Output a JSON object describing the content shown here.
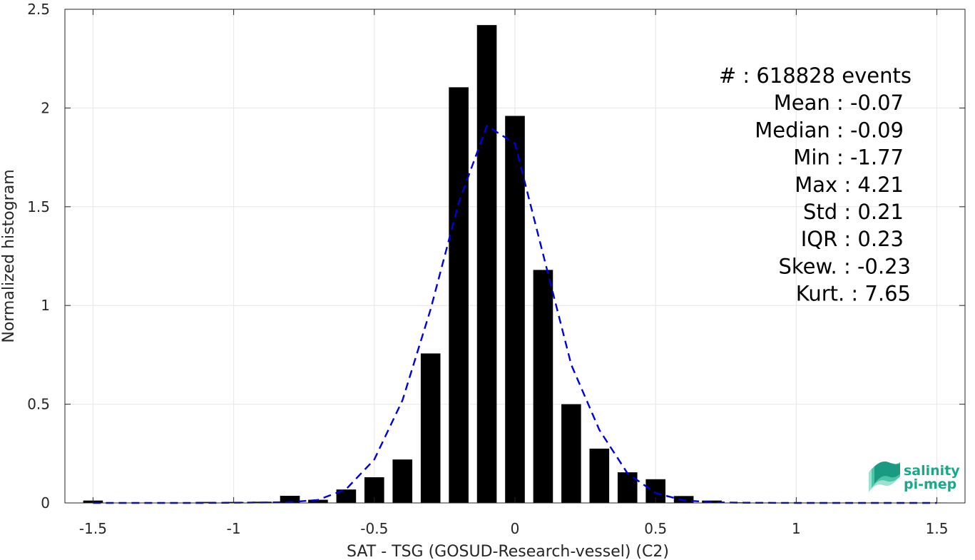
{
  "chart_data": {
    "type": "bar",
    "xlabel": "SAT - TSG (GOSUD-Research-vessel) (C2)",
    "ylabel": "Normalized histogram",
    "xlim": [
      -1.6,
      1.6
    ],
    "ylim": [
      0,
      2.5
    ],
    "xticks": [
      -1.5,
      -1,
      -0.5,
      0,
      0.5,
      1,
      1.5
    ],
    "xtick_labels": [
      "-1.5",
      "-1",
      "-0.5",
      "0",
      "0.5",
      "1",
      "1.5"
    ],
    "yticks": [
      0,
      0.5,
      1,
      1.5,
      2,
      2.5
    ],
    "ytick_labels": [
      "0",
      "0.5",
      "1",
      "1.5",
      "2",
      "2.5"
    ],
    "grid": true,
    "bar_color": "#000000",
    "fit_color": "#0000dd",
    "bins": [
      -1.5,
      -1.4,
      -1.3,
      -1.2,
      -1.1,
      -1.0,
      -0.9,
      -0.8,
      -0.7,
      -0.6,
      -0.5,
      -0.4,
      -0.3,
      -0.2,
      -0.1,
      0.0,
      0.1,
      0.2,
      0.3,
      0.4,
      0.5,
      0.6,
      0.7,
      0.8,
      0.9,
      1.0,
      1.1,
      1.2,
      1.3,
      1.4,
      1.5
    ],
    "values": [
      0.012,
      0.0,
      0.0,
      0.0,
      0.005,
      0.005,
      0.006,
      0.036,
      0.016,
      0.068,
      0.13,
      0.22,
      0.757,
      2.105,
      2.42,
      1.96,
      1.18,
      0.5,
      0.275,
      0.155,
      0.12,
      0.035,
      0.012,
      0.003,
      0.002,
      0.002,
      0.002,
      0.002,
      0.002,
      0.002,
      0.002
    ],
    "series": [
      {
        "type": "line",
        "style": "dashed",
        "x": [
          -1.5,
          -1.3,
          -1.1,
          -0.9,
          -0.8,
          -0.7,
          -0.6,
          -0.5,
          -0.4,
          -0.3,
          -0.2,
          -0.1,
          0.0,
          0.1,
          0.2,
          0.3,
          0.4,
          0.5,
          0.6,
          0.7,
          0.8,
          1.0,
          1.5
        ],
        "y": [
          0.0,
          0.0,
          0.0,
          0.002,
          0.004,
          0.015,
          0.07,
          0.22,
          0.52,
          0.98,
          1.52,
          1.91,
          1.82,
          1.26,
          0.7,
          0.37,
          0.15,
          0.05,
          0.013,
          0.004,
          0.001,
          0.0,
          0.0
        ]
      }
    ],
    "annotations": [
      "#  : 618828 events",
      "Mean : -0.07",
      "Median : -0.09",
      "Min : -1.77",
      "Max : 4.21",
      "Std : 0.21",
      "IQR : 0.23",
      "Skew. : -0.23",
      "Kurt. : 7.65"
    ]
  },
  "logo": {
    "line1": "salinity",
    "line2": "pi-mep",
    "color": "#1aa88a"
  }
}
